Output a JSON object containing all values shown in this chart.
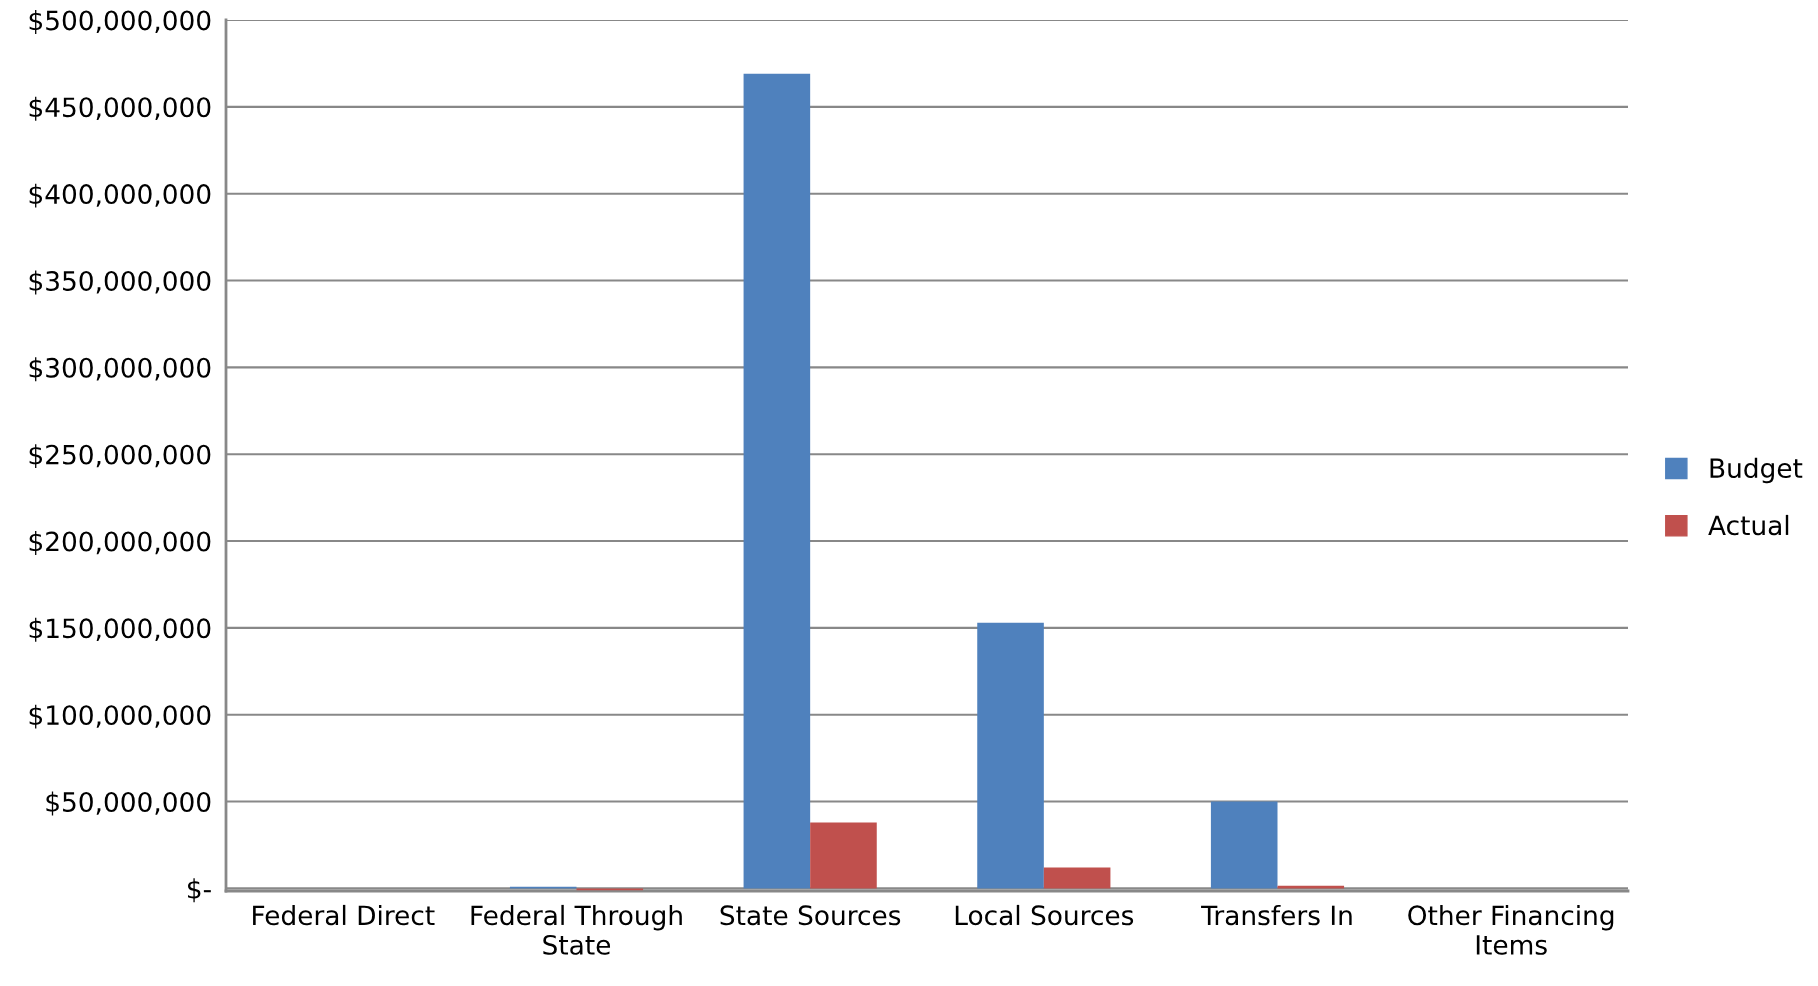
{
  "chart_data": {
    "type": "bar",
    "categories": [
      "Federal Direct",
      "Federal Through\nState",
      "State Sources",
      "Local Sources",
      "Transfers In",
      "Other Financing\nItems"
    ],
    "series": [
      {
        "name": "Budget",
        "color": "#4f81bd",
        "values": [
          0,
          1000000,
          469000000,
          153000000,
          50000000,
          0
        ]
      },
      {
        "name": "Actual",
        "color": "#c0504d",
        "values": [
          0,
          -1000000,
          38000000,
          12000000,
          1500000,
          0
        ]
      }
    ],
    "ylim": [
      -1500000,
      500000000
    ],
    "yticks": [
      {
        "value": 0,
        "label": "$-"
      },
      {
        "value": 50000000,
        "label": "$50,000,000"
      },
      {
        "value": 100000000,
        "label": "$100,000,000"
      },
      {
        "value": 150000000,
        "label": "$150,000,000"
      },
      {
        "value": 200000000,
        "label": "$200,000,000"
      },
      {
        "value": 250000000,
        "label": "$250,000,000"
      },
      {
        "value": 300000000,
        "label": "$300,000,000"
      },
      {
        "value": 350000000,
        "label": "$350,000,000"
      },
      {
        "value": 400000000,
        "label": "$400,000,000"
      },
      {
        "value": 450000000,
        "label": "$450,000,000"
      },
      {
        "value": 500000000,
        "label": "$500,000,000"
      }
    ],
    "grid": "y",
    "legend": "right"
  }
}
